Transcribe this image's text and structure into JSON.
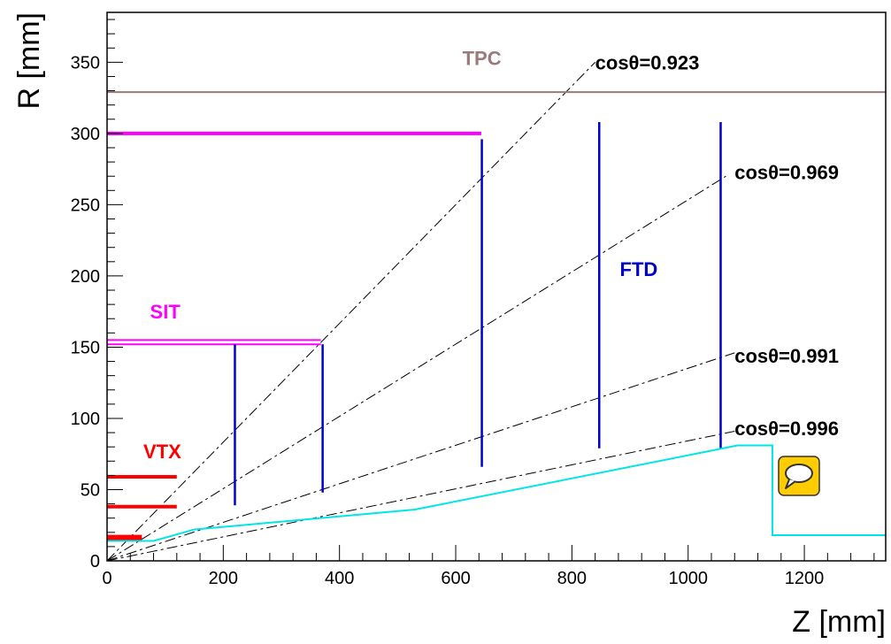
{
  "chart_data": {
    "type": "line",
    "xlabel": "Z [mm]",
    "ylabel": "R [mm]",
    "xlim": [
      0,
      1340
    ],
    "ylim": [
      0,
      385
    ],
    "x_ticks": [
      0,
      200,
      400,
      600,
      800,
      1000,
      1200
    ],
    "y_ticks": [
      0,
      50,
      100,
      150,
      200,
      250,
      300,
      350
    ],
    "grid": false,
    "detectors": [
      {
        "name": "VTX",
        "label": "VTX",
        "color": "#ff0000",
        "label_pos": {
          "x": 95,
          "y": 72
        },
        "segments": [
          {
            "z1": 0,
            "z2": 120,
            "r1": 59,
            "r2": 59
          },
          {
            "z1": 0,
            "z2": 120,
            "r1": 38,
            "r2": 38
          },
          {
            "z1": 0,
            "z2": 60,
            "r1": 17,
            "r2": 17
          },
          {
            "z1": 0,
            "z2": 60,
            "r1": 15,
            "r2": 15
          }
        ]
      },
      {
        "name": "SIT",
        "label": "SIT",
        "color": "#ff00ff",
        "label_pos": {
          "x": 100,
          "y": 170
        },
        "segments": [
          {
            "z1": 0,
            "z2": 368,
            "r1": 155,
            "r2": 155
          },
          {
            "z1": 0,
            "z2": 368,
            "r1": 152,
            "r2": 152
          }
        ]
      },
      {
        "name": "SET",
        "label": "",
        "color": "#ff00ff",
        "segments": [
          {
            "z1": 0,
            "z2": 644,
            "r1": 300,
            "r2": 300
          }
        ]
      },
      {
        "name": "FTD",
        "label": "FTD",
        "color": "#0000cc",
        "label_pos": {
          "x": 915,
          "y": 200
        },
        "segments": [
          {
            "z1": 220,
            "z2": 220,
            "r1": 39,
            "r2": 152
          },
          {
            "z1": 371,
            "z2": 371,
            "r1": 48,
            "r2": 152
          },
          {
            "z1": 645,
            "z2": 645,
            "r1": 66,
            "r2": 296
          },
          {
            "z1": 847,
            "z2": 847,
            "r1": 79,
            "r2": 308
          },
          {
            "z1": 1056,
            "z2": 1056,
            "r1": 79,
            "r2": 308
          }
        ]
      },
      {
        "name": "TPC",
        "label": "TPC",
        "color": "#9c7a7a",
        "label_pos": {
          "x": 645,
          "y": 348
        },
        "segments": [
          {
            "z1": 0,
            "z2": 1340,
            "r1": 329,
            "r2": 329
          }
        ]
      }
    ],
    "beampipe": {
      "color": "#00e5e5",
      "z": [
        0,
        80,
        150,
        530,
        1085,
        1145,
        1145,
        1340
      ],
      "r": [
        14,
        14,
        22,
        36,
        81,
        81,
        18,
        18
      ]
    },
    "cos_lines": [
      {
        "label": "cosθ=0.923",
        "z_end": 840,
        "r_end": 350,
        "label_pos": {
          "x": 840,
          "y": 350
        }
      },
      {
        "label": "cosθ=0.969",
        "z_end": 1065,
        "r_end": 270,
        "label_pos": {
          "x": 1080,
          "y": 273
        }
      },
      {
        "label": "cosθ=0.991",
        "z_end": 1080,
        "r_end": 146,
        "label_pos": {
          "x": 1080,
          "y": 144
        }
      },
      {
        "label": "cosθ=0.996",
        "z_end": 1080,
        "r_end": 91,
        "label_pos": {
          "x": 1080,
          "y": 93
        }
      }
    ]
  },
  "ui": {
    "comment_icon": "speech-bubble-icon",
    "comment_icon_color": "#ffcc00"
  }
}
